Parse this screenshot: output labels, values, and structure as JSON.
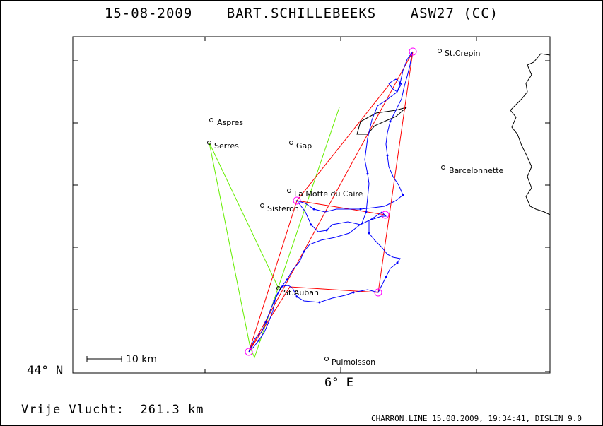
{
  "title": {
    "date": "15-08-2009",
    "pilot": "BART.SCHILLEBEEKS",
    "glider": "ASW27 (CC)"
  },
  "axes": {
    "lat_label": "44° N",
    "lon_label": "6° E"
  },
  "scale_bar": {
    "label": "10 km"
  },
  "towns": [
    {
      "name": "St.Crepin"
    },
    {
      "name": "Aspres"
    },
    {
      "name": "Serres"
    },
    {
      "name": "Gap"
    },
    {
      "name": "Barcelonnette"
    },
    {
      "name": "La Motte du Caire"
    },
    {
      "name": "Sisteron"
    },
    {
      "name": "St.Auban"
    },
    {
      "name": "Puimoisson"
    }
  ],
  "footer": {
    "distance_label": "Vrije Vlucht:",
    "distance_value": "261.3 km",
    "info": "CHARRON.LINE 15.08.2009, 19:34:41, DISLIN 9.0"
  },
  "colors": {
    "track": "#0000ff",
    "task_route": "#ff0000",
    "tow_lines": "#66ee00",
    "turnpoints": "#ff00ff",
    "terrain": "#000000"
  }
}
